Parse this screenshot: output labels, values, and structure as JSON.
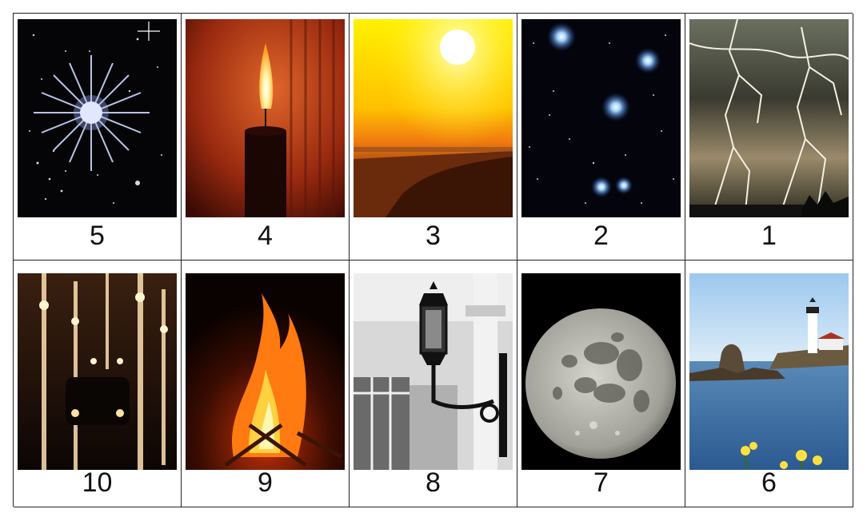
{
  "cards": [
    {
      "number": "5",
      "icon": "bright-star"
    },
    {
      "number": "4",
      "icon": "candle-flame"
    },
    {
      "number": "3",
      "icon": "sun"
    },
    {
      "number": "2",
      "icon": "star-cluster"
    },
    {
      "number": "1",
      "icon": "lightning"
    },
    {
      "number": "10",
      "icon": "car-headlights"
    },
    {
      "number": "9",
      "icon": "campfire"
    },
    {
      "number": "8",
      "icon": "street-lamp"
    },
    {
      "number": "7",
      "icon": "full-moon"
    },
    {
      "number": "6",
      "icon": "lighthouse"
    }
  ]
}
